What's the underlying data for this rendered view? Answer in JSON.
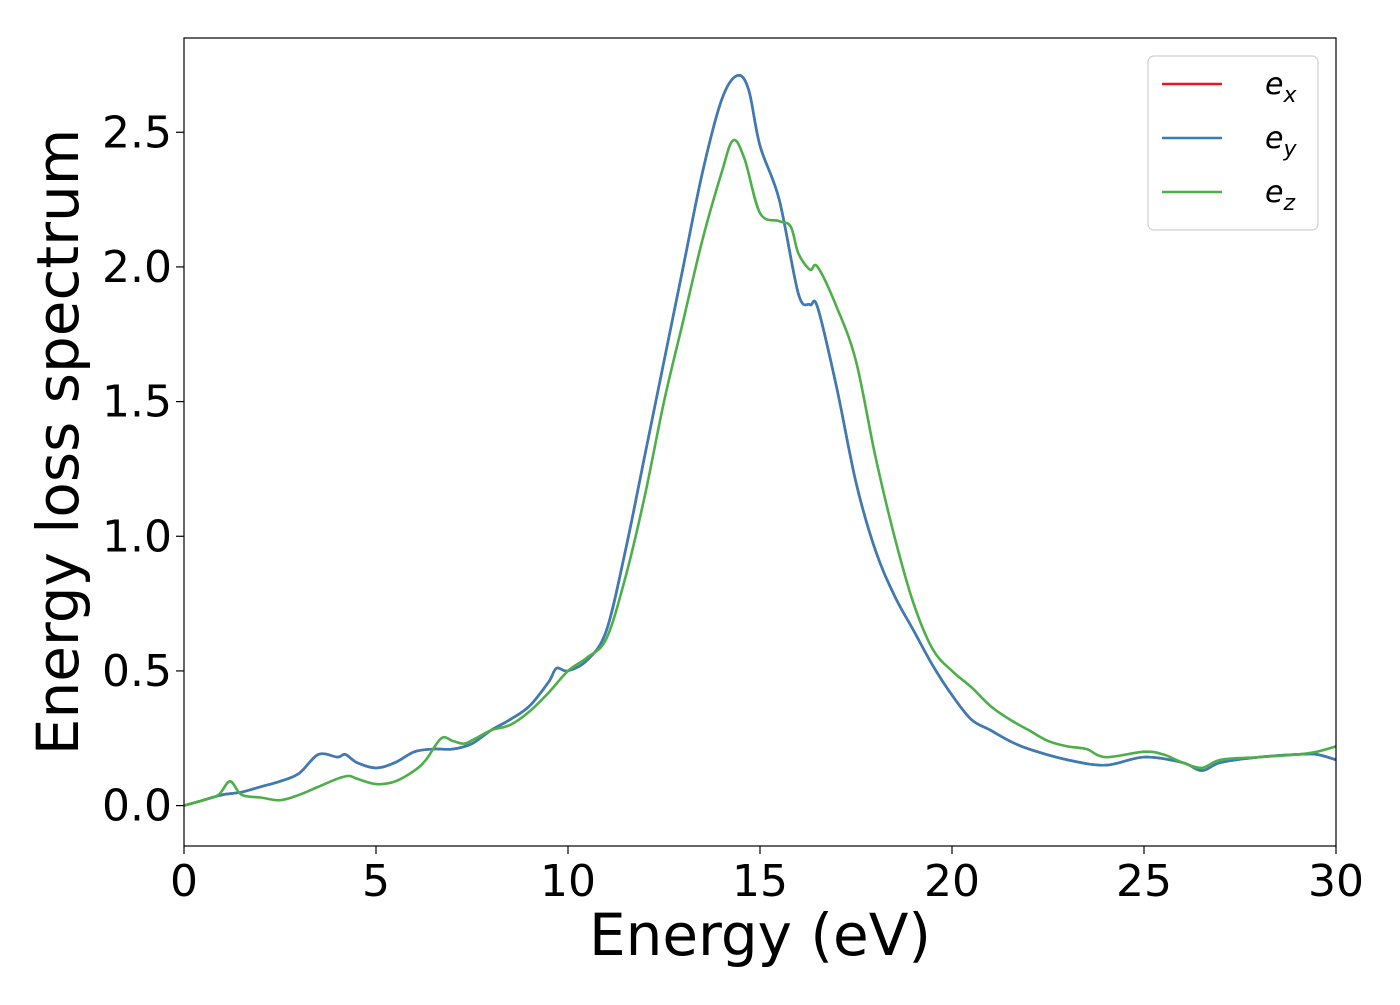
{
  "chart_data": {
    "type": "line",
    "xlabel": "Energy (eV)",
    "ylabel": "Energy loss spectrum",
    "xlim": [
      0,
      30
    ],
    "ylim": [
      -0.15,
      2.85
    ],
    "xticks": [
      0,
      5,
      10,
      15,
      20,
      25,
      30
    ],
    "xtick_labels": [
      "0",
      "5",
      "10",
      "15",
      "20",
      "25",
      "30"
    ],
    "yticks": [
      0.0,
      0.5,
      1.0,
      1.5,
      2.0,
      2.5
    ],
    "ytick_labels": [
      "0.0",
      "0.5",
      "1.0",
      "1.5",
      "2.0",
      "2.5"
    ],
    "grid": false,
    "legend_position": "top-right",
    "series": [
      {
        "name": "e_x",
        "label_base": "e",
        "label_sub": "x",
        "color": "#e41a1c",
        "x": [
          0,
          0.5,
          1,
          1.5,
          2,
          2.5,
          3,
          3.5,
          4,
          4.2,
          4.5,
          5,
          5.5,
          6,
          6.5,
          7,
          7.5,
          8,
          8.5,
          9,
          9.5,
          9.7,
          10,
          10.5,
          11,
          11.5,
          12,
          12.5,
          13,
          13.5,
          14,
          14.4,
          14.7,
          15,
          15.5,
          16,
          16.3,
          16.5,
          17,
          17.5,
          18,
          18.5,
          19,
          19.5,
          20,
          20.5,
          21,
          21.5,
          22,
          23,
          24,
          25,
          26,
          26.5,
          27,
          28,
          29,
          29.5,
          30
        ],
        "y": [
          0.0,
          0.02,
          0.04,
          0.05,
          0.07,
          0.09,
          0.12,
          0.19,
          0.18,
          0.19,
          0.16,
          0.14,
          0.16,
          0.2,
          0.21,
          0.21,
          0.23,
          0.28,
          0.32,
          0.37,
          0.46,
          0.51,
          0.5,
          0.54,
          0.65,
          0.95,
          1.3,
          1.65,
          2.0,
          2.35,
          2.62,
          2.71,
          2.66,
          2.45,
          2.25,
          1.9,
          1.86,
          1.85,
          1.55,
          1.2,
          0.95,
          0.78,
          0.65,
          0.52,
          0.41,
          0.32,
          0.28,
          0.24,
          0.21,
          0.17,
          0.15,
          0.18,
          0.16,
          0.13,
          0.16,
          0.18,
          0.19,
          0.19,
          0.17
        ]
      },
      {
        "name": "e_y",
        "label_base": "e",
        "label_sub": "y",
        "color": "#377eb8",
        "x": [
          0,
          0.5,
          1,
          1.5,
          2,
          2.5,
          3,
          3.5,
          4,
          4.2,
          4.5,
          5,
          5.5,
          6,
          6.5,
          7,
          7.5,
          8,
          8.5,
          9,
          9.5,
          9.7,
          10,
          10.5,
          11,
          11.5,
          12,
          12.5,
          13,
          13.5,
          14,
          14.4,
          14.7,
          15,
          15.5,
          16,
          16.3,
          16.5,
          17,
          17.5,
          18,
          18.5,
          19,
          19.5,
          20,
          20.5,
          21,
          21.5,
          22,
          23,
          24,
          25,
          26,
          26.5,
          27,
          28,
          29,
          29.5,
          30
        ],
        "y": [
          0.0,
          0.02,
          0.04,
          0.05,
          0.07,
          0.09,
          0.12,
          0.19,
          0.18,
          0.19,
          0.16,
          0.14,
          0.16,
          0.2,
          0.21,
          0.21,
          0.23,
          0.28,
          0.32,
          0.37,
          0.46,
          0.51,
          0.5,
          0.54,
          0.65,
          0.95,
          1.3,
          1.65,
          2.0,
          2.35,
          2.62,
          2.71,
          2.66,
          2.45,
          2.25,
          1.9,
          1.86,
          1.85,
          1.55,
          1.2,
          0.95,
          0.78,
          0.65,
          0.52,
          0.41,
          0.32,
          0.28,
          0.24,
          0.21,
          0.17,
          0.15,
          0.18,
          0.16,
          0.13,
          0.16,
          0.18,
          0.19,
          0.19,
          0.17
        ]
      },
      {
        "name": "e_z",
        "label_base": "e",
        "label_sub": "z",
        "color": "#4daf4a",
        "x": [
          0,
          0.5,
          0.9,
          1.2,
          1.5,
          2,
          2.5,
          3,
          3.5,
          4,
          4.3,
          4.5,
          5,
          5.5,
          6,
          6.3,
          6.7,
          7,
          7.3,
          7.6,
          8,
          8.5,
          9,
          9.5,
          10,
          10.5,
          11,
          11.5,
          12,
          12.5,
          13,
          13.5,
          14,
          14.3,
          14.6,
          15,
          15.5,
          15.8,
          16,
          16.3,
          16.5,
          17,
          17.5,
          18,
          18.5,
          19,
          19.5,
          20,
          20.5,
          21,
          21.5,
          22,
          22.5,
          23,
          23.5,
          24,
          25,
          25.5,
          26,
          26.5,
          27,
          28,
          29,
          29.5,
          30
        ],
        "y": [
          0.0,
          0.02,
          0.04,
          0.09,
          0.04,
          0.03,
          0.02,
          0.04,
          0.07,
          0.1,
          0.11,
          0.1,
          0.08,
          0.09,
          0.13,
          0.17,
          0.25,
          0.24,
          0.23,
          0.25,
          0.28,
          0.3,
          0.35,
          0.42,
          0.5,
          0.55,
          0.62,
          0.85,
          1.15,
          1.5,
          1.8,
          2.1,
          2.35,
          2.47,
          2.4,
          2.2,
          2.17,
          2.15,
          2.05,
          1.99,
          2.0,
          1.85,
          1.65,
          1.3,
          1.0,
          0.75,
          0.58,
          0.5,
          0.44,
          0.37,
          0.32,
          0.28,
          0.24,
          0.22,
          0.21,
          0.18,
          0.2,
          0.19,
          0.16,
          0.14,
          0.17,
          0.18,
          0.19,
          0.2,
          0.22
        ]
      }
    ]
  }
}
